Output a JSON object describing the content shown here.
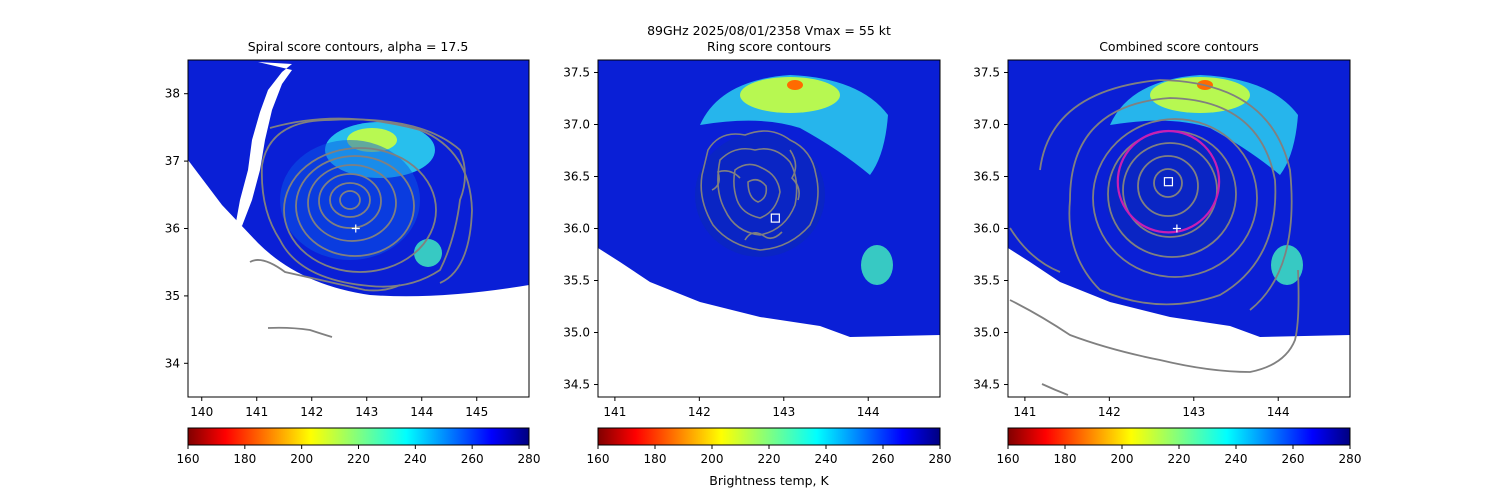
{
  "figure": {
    "suptitle": "89GHz  2025/08/01/2358    Vmax = 55 kt",
    "colorbar_label": "Brightness temp, K"
  },
  "chart_data": [
    {
      "type": "heatmap",
      "title": "Spiral score contours, alpha = 17.5",
      "xlim": [
        139.75,
        145.95
      ],
      "ylim": [
        33.5,
        38.5
      ],
      "xticks": [
        140,
        141,
        142,
        143,
        144,
        145
      ],
      "yticks": [
        34,
        35,
        36,
        37,
        38
      ],
      "colormap": "jet",
      "clim": [
        160,
        280
      ],
      "colorbar_ticks": [
        160,
        180,
        200,
        220,
        240,
        260,
        280
      ],
      "contour_color": "#808080",
      "storm_center_marker": {
        "symbol": "+",
        "x": 142.8,
        "y": 36.0
      },
      "warm_cores": [
        {
          "x": 143.2,
          "y": 36.9,
          "tb": 218
        },
        {
          "x": 144.2,
          "y": 35.7,
          "tb": 222
        }
      ]
    },
    {
      "type": "heatmap",
      "title": "Ring score contours",
      "xlim": [
        140.8,
        144.85
      ],
      "ylim": [
        34.38,
        37.62
      ],
      "xticks": [
        141,
        142,
        143,
        144
      ],
      "yticks": [
        34.5,
        35.0,
        35.5,
        36.0,
        36.5,
        37.0,
        37.5
      ],
      "colormap": "jet",
      "clim": [
        160,
        280
      ],
      "colorbar_ticks": [
        160,
        180,
        200,
        220,
        240,
        260,
        280
      ],
      "contour_color": "#808080",
      "best_center_marker": {
        "symbol": "square",
        "x": 142.9,
        "y": 36.1
      },
      "warm_cores": [
        {
          "x": 143.1,
          "y": 37.35,
          "tb": 196
        },
        {
          "x": 144.1,
          "y": 35.7,
          "tb": 224
        }
      ]
    },
    {
      "type": "heatmap",
      "title": "Combined score contours",
      "xlim": [
        140.8,
        144.85
      ],
      "ylim": [
        34.38,
        37.62
      ],
      "xticks": [
        141,
        142,
        143,
        144
      ],
      "yticks": [
        34.5,
        35.0,
        35.5,
        36.0,
        36.5,
        37.0,
        37.5
      ],
      "colormap": "jet",
      "clim": [
        160,
        280
      ],
      "colorbar_ticks": [
        160,
        180,
        200,
        220,
        240,
        260,
        280
      ],
      "contour_color": "#808080",
      "ring_color": "#c81eb4",
      "best_center_marker": {
        "symbol": "square",
        "x": 142.7,
        "y": 36.45
      },
      "storm_center_marker": {
        "symbol": "+",
        "x": 142.8,
        "y": 36.0
      },
      "ring": {
        "x": 142.7,
        "y": 36.45,
        "radius_deg": 0.6
      },
      "warm_cores": [
        {
          "x": 143.1,
          "y": 37.35,
          "tb": 196
        },
        {
          "x": 144.1,
          "y": 35.7,
          "tb": 224
        }
      ]
    }
  ]
}
